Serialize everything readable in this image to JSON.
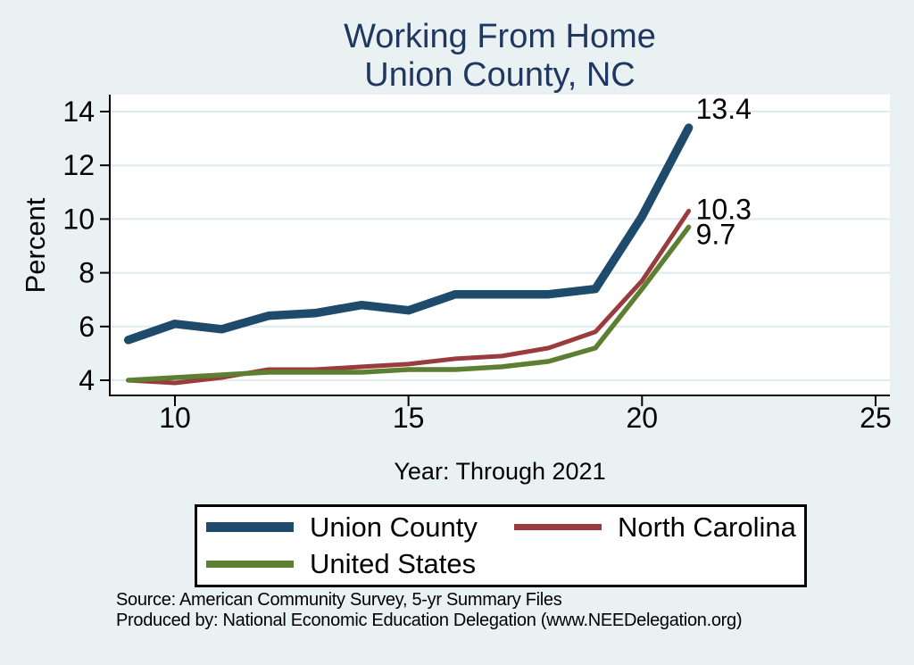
{
  "title": {
    "line1": "Working From Home",
    "line2": "Union County, NC"
  },
  "y_axis": {
    "label": "Percent",
    "ticks": [
      4,
      6,
      8,
      10,
      12,
      14
    ]
  },
  "x_axis": {
    "label": "Year: Through 2021",
    "ticks": [
      10,
      15,
      20,
      25
    ]
  },
  "footer": {
    "source_line": "Source: American Community Survey, 5-yr Summary Files",
    "produced_line": "Produced by: National Economic Education Delegation (www.NEEDelegation.org)"
  },
  "colors": {
    "page_background": "#E9F1F2",
    "plot_background": "#FFFFFF",
    "gridline": "#DFEBEE",
    "axis": "#000000",
    "title_text": "#203760",
    "union_county": "#1E4A6C",
    "north_carolina": "#9A3B3E",
    "united_states": "#5C7F31"
  },
  "chart_data": {
    "type": "line",
    "title": "Working From Home — Union County, NC",
    "xlabel": "Year: Through 2021",
    "ylabel": "Percent",
    "x": [
      9,
      10,
      11,
      12,
      13,
      14,
      15,
      16,
      17,
      18,
      19,
      20,
      21
    ],
    "x_ticks": [
      10,
      15,
      20,
      25
    ],
    "y_ticks": [
      4,
      6,
      8,
      10,
      12,
      14
    ],
    "xlim": [
      8.6,
      25.3
    ],
    "ylim": [
      3.55,
      14.65
    ],
    "grid": "horizontal",
    "legend_position": "bottom",
    "series": [
      {
        "name": "Union County",
        "color": "#1E4A6C",
        "stroke_width": 9.5,
        "swatch_height": 11,
        "end_label": "13.4",
        "values": [
          5.5,
          6.1,
          5.9,
          6.4,
          6.5,
          6.8,
          6.6,
          7.2,
          7.2,
          7.2,
          7.4,
          10.1,
          13.4
        ]
      },
      {
        "name": "North Carolina",
        "color": "#9A3B3E",
        "stroke_width": 5,
        "swatch_height": 7,
        "end_label": "10.3",
        "values": [
          4.0,
          3.9,
          4.1,
          4.4,
          4.4,
          4.5,
          4.6,
          4.8,
          4.9,
          5.2,
          5.8,
          7.7,
          10.3
        ]
      },
      {
        "name": "United States",
        "color": "#5C7F31",
        "stroke_width": 5.5,
        "swatch_height": 8,
        "end_label": "9.7",
        "values": [
          4.0,
          4.1,
          4.2,
          4.3,
          4.3,
          4.3,
          4.4,
          4.4,
          4.5,
          4.7,
          5.2,
          7.4,
          9.7
        ]
      }
    ]
  }
}
